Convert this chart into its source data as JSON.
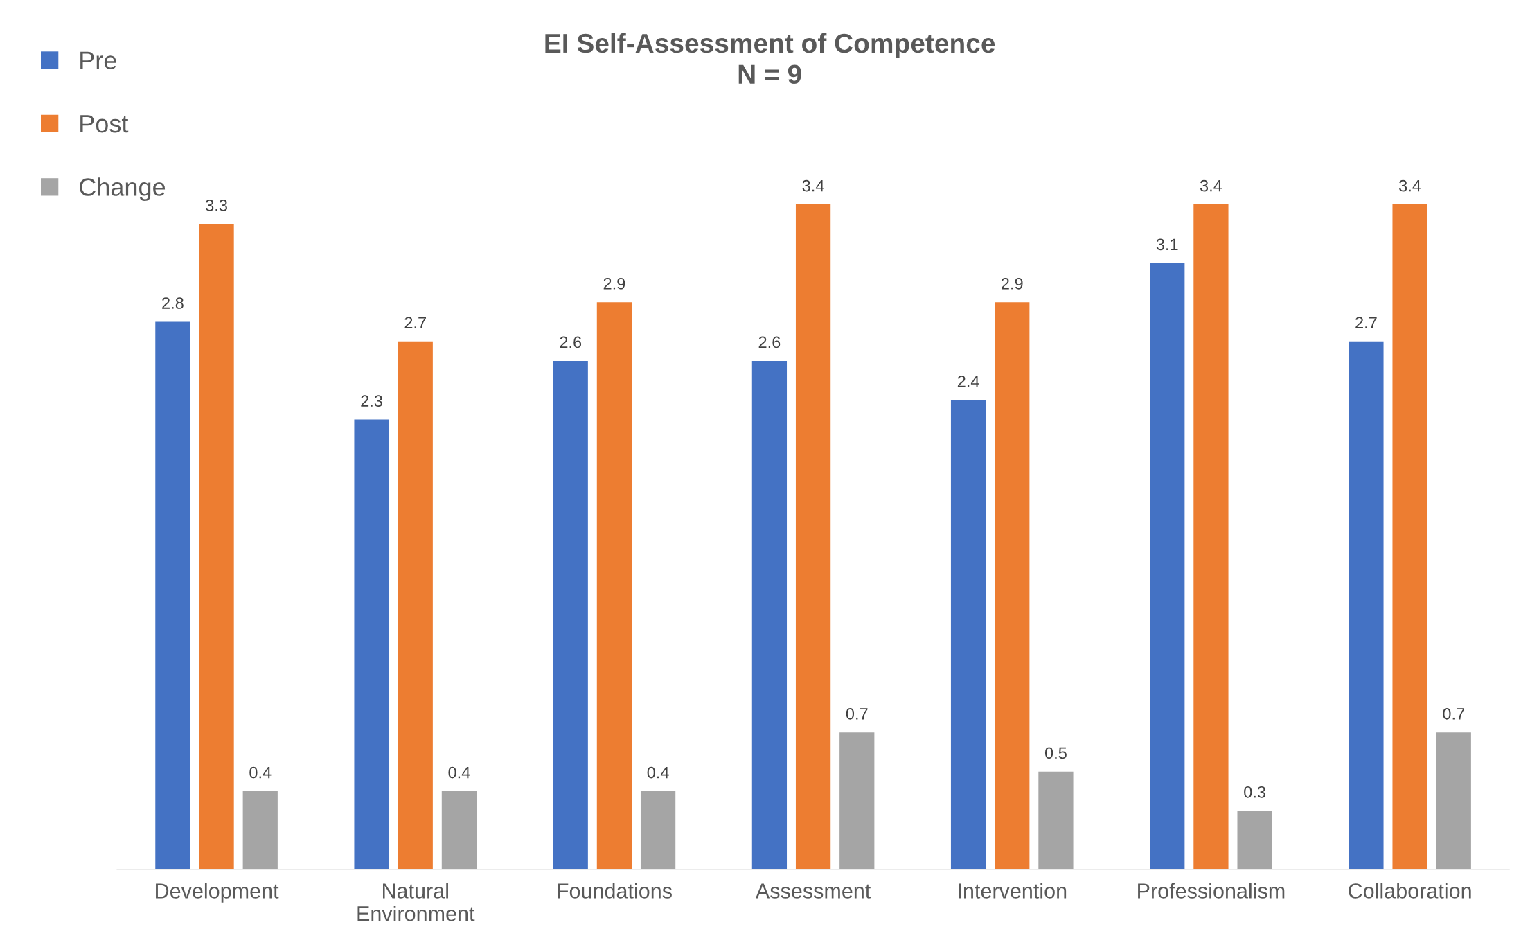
{
  "chart_data": {
    "type": "bar",
    "title": "EI Self-Assessment of Competence\nN = 9",
    "categories": [
      "Development",
      "Natural\nEnvironment",
      "Foundations",
      "Assessment",
      "Intervention",
      "Professionalism",
      "Collaboration"
    ],
    "series": [
      {
        "name": "Pre",
        "color": "#4472c4",
        "values": [
          2.8,
          2.3,
          2.6,
          2.6,
          2.4,
          3.1,
          2.7
        ]
      },
      {
        "name": "Post",
        "color": "#ed7d31",
        "values": [
          3.3,
          2.7,
          2.9,
          3.4,
          2.9,
          3.4,
          3.4
        ]
      },
      {
        "name": "Change",
        "color": "#a5a5a5",
        "values": [
          0.4,
          0.4,
          0.4,
          0.7,
          0.5,
          0.3,
          0.7
        ]
      }
    ],
    "data_labels": true,
    "legend": "top left",
    "grid": false
  }
}
